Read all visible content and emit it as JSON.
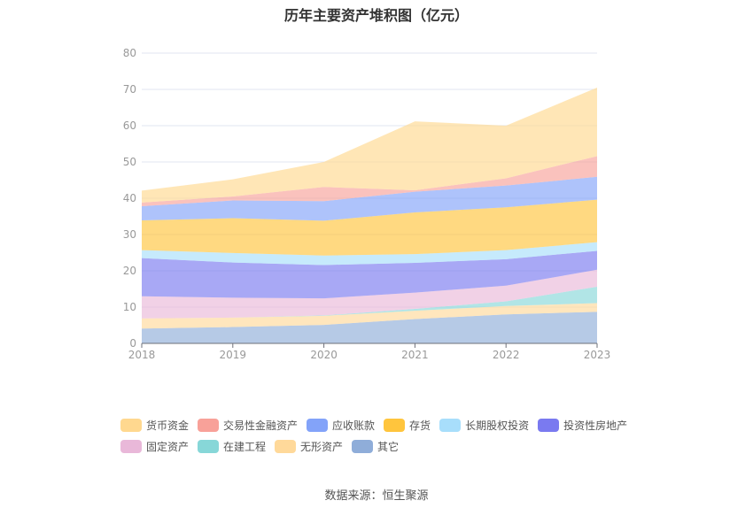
{
  "chart_data": {
    "type": "area",
    "stacked": true,
    "title": "历年主要资产堆积图（亿元）",
    "categories": [
      "2018",
      "2019",
      "2020",
      "2021",
      "2022",
      "2023"
    ],
    "ylim": [
      0,
      80
    ],
    "yticks": [
      0,
      10,
      20,
      30,
      40,
      50,
      60,
      70,
      80
    ],
    "grid": true,
    "legend_position": "bottom",
    "series": [
      {
        "name": "其它",
        "color": "#8FADD9",
        "values": [
          4.1,
          4.5,
          5.1,
          6.7,
          8.0,
          8.7
        ]
      },
      {
        "name": "无形资产",
        "color": "#FFD99A",
        "values": [
          2.8,
          2.6,
          2.5,
          2.3,
          2.3,
          2.4
        ]
      },
      {
        "name": "在建工程",
        "color": "#87D7D8",
        "values": [
          0.0,
          0.0,
          0.1,
          0.5,
          1.3,
          4.5
        ]
      },
      {
        "name": "固定资产",
        "color": "#E9B8D9",
        "values": [
          6.1,
          5.5,
          4.7,
          4.5,
          4.3,
          4.7
        ]
      },
      {
        "name": "投资性房地产",
        "color": "#7A7AF0",
        "values": [
          10.5,
          9.7,
          9.2,
          8.2,
          7.3,
          5.2
        ]
      },
      {
        "name": "长期股权投资",
        "color": "#A8DEFB",
        "values": [
          2.2,
          2.6,
          2.6,
          2.4,
          2.5,
          2.4
        ]
      },
      {
        "name": "存货",
        "color": "#FFC53D",
        "values": [
          8.2,
          9.6,
          9.6,
          11.5,
          11.8,
          11.7
        ]
      },
      {
        "name": "应收账款",
        "color": "#83A3F9",
        "values": [
          3.9,
          4.9,
          5.4,
          5.7,
          6.0,
          6.3
        ]
      },
      {
        "name": "交易性金融资产",
        "color": "#F8A199",
        "values": [
          1.0,
          1.1,
          3.9,
          0.4,
          2.0,
          5.7
        ]
      },
      {
        "name": "货币资金",
        "color": "#FFD88F",
        "values": [
          3.3,
          4.7,
          6.9,
          19.0,
          14.5,
          18.9
        ]
      }
    ],
    "legend_order": [
      "货币资金",
      "交易性金融资产",
      "应收账款",
      "存货",
      "长期股权投资",
      "投资性房地产",
      "固定资产",
      "在建工程",
      "无形资产",
      "其它"
    ]
  },
  "source": "数据来源：恒生聚源"
}
